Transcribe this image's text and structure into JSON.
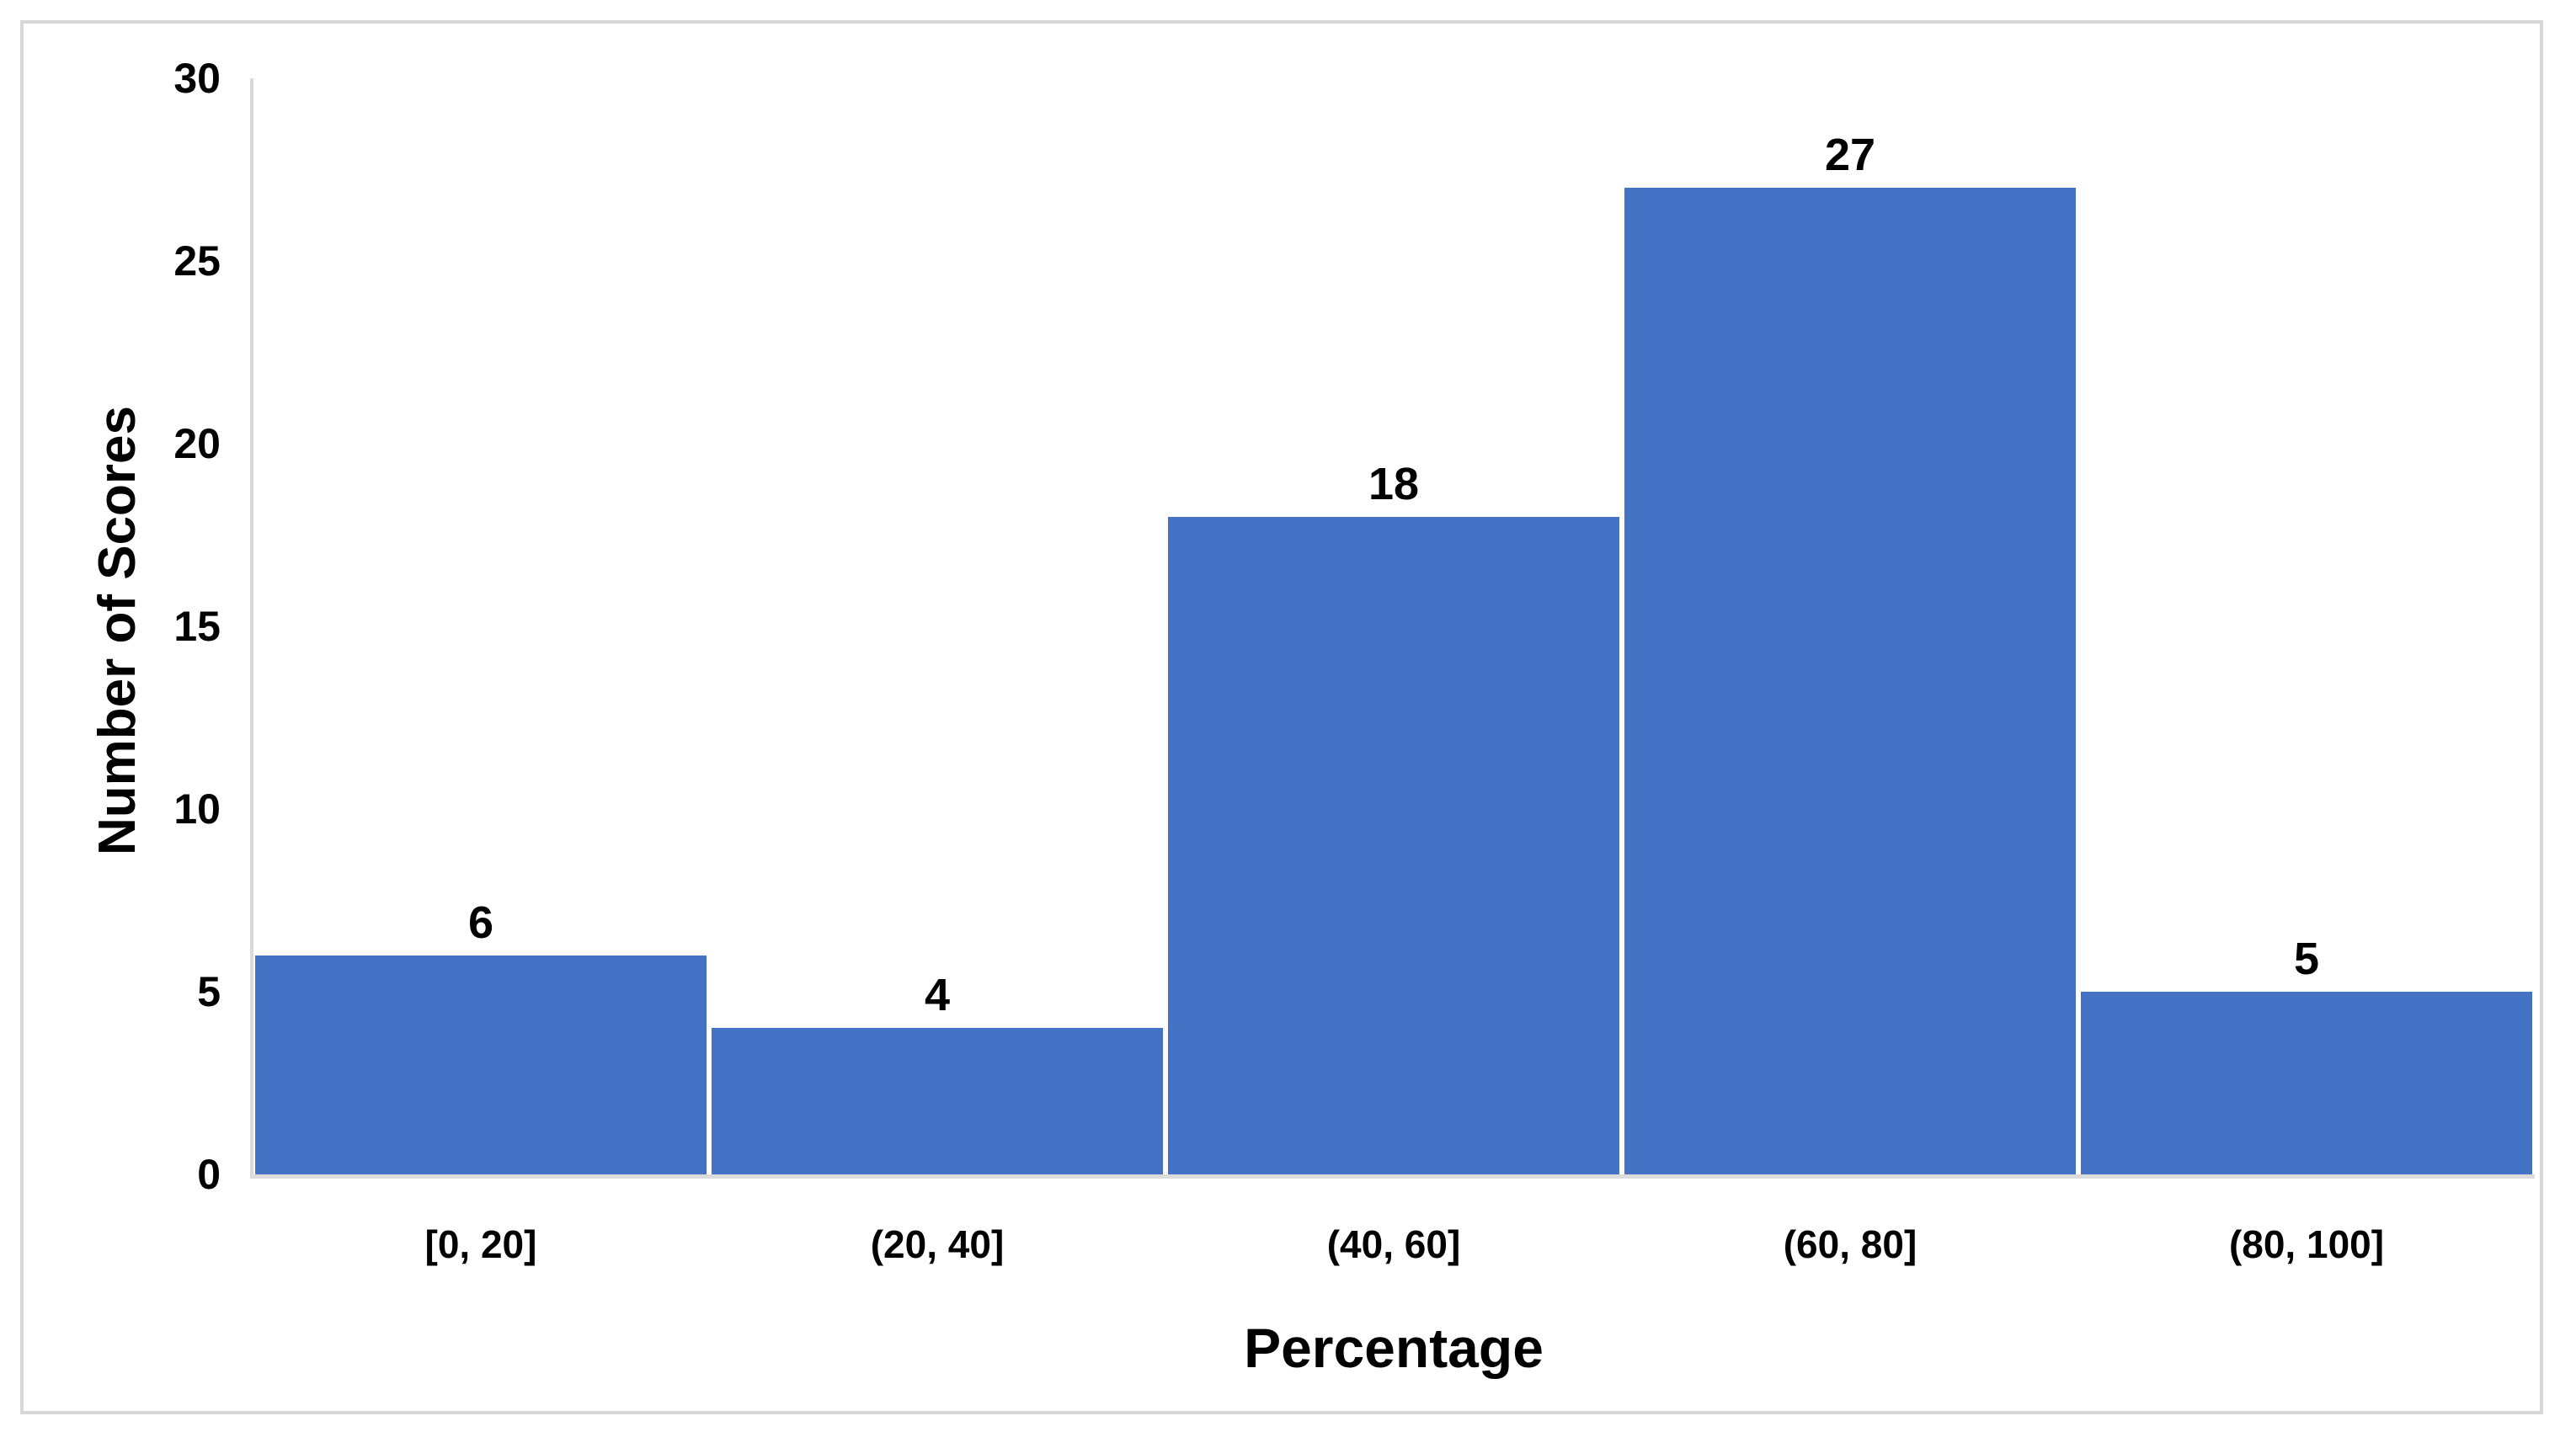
{
  "chart_data": {
    "type": "bar",
    "title": "",
    "categories": [
      "[0, 20]",
      "(20, 40]",
      "(40, 60]",
      "(60, 80]",
      "(80, 100]"
    ],
    "values": [
      6,
      4,
      18,
      27,
      5
    ],
    "xlabel": "Percentage",
    "ylabel": "Number of Scores",
    "ylim": [
      0,
      30
    ],
    "yticks": [
      0,
      5,
      10,
      15,
      20,
      25,
      30
    ],
    "data_labels_shown": true,
    "grid": false,
    "legend": false,
    "colors": {
      "bar": "#4472c4",
      "axis_line": "#d9d9d9",
      "frame_border": "#d8d8d8",
      "text": "#000000",
      "background": "#ffffff"
    }
  }
}
